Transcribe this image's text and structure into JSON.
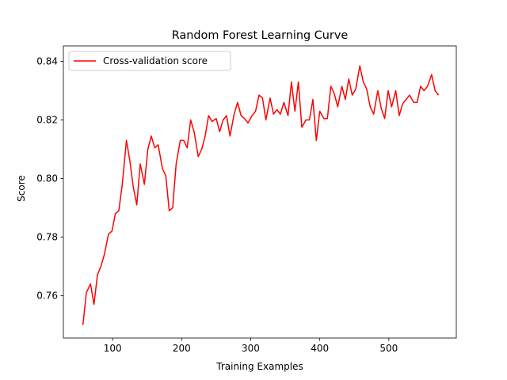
{
  "chart_data": {
    "type": "line",
    "title": "Random Forest Learning Curve",
    "x_label": "Training Examples",
    "y_label": "Score",
    "x": [
      57,
      62,
      68,
      73,
      78,
      83,
      88,
      94,
      99,
      104,
      109,
      114,
      120,
      125,
      130,
      135,
      140,
      146,
      151,
      156,
      161,
      166,
      172,
      177,
      182,
      187,
      192,
      198,
      203,
      208,
      213,
      218,
      224,
      229,
      234,
      239,
      244,
      250,
      255,
      260,
      265,
      270,
      276,
      281,
      286,
      291,
      296,
      302,
      307,
      312,
      317,
      322,
      328,
      333,
      338,
      343,
      348,
      354,
      359,
      364,
      369,
      374,
      380,
      385,
      390,
      395,
      400,
      406,
      411,
      416,
      421,
      426,
      432,
      437,
      442,
      447,
      452,
      458,
      463,
      468,
      473,
      478,
      484,
      489,
      494,
      499,
      504,
      510,
      515,
      520,
      525,
      530,
      536,
      541,
      546,
      551,
      556,
      562,
      567,
      572
    ],
    "series": [
      {
        "name": "Cross-validation score",
        "color": "#ff0000",
        "values": [
          0.75,
          0.761,
          0.764,
          0.757,
          0.767,
          0.77,
          0.774,
          0.781,
          0.782,
          0.788,
          0.789,
          0.798,
          0.813,
          0.806,
          0.797,
          0.791,
          0.805,
          0.798,
          0.81,
          0.8145,
          0.8105,
          0.8115,
          0.8035,
          0.801,
          0.789,
          0.79,
          0.805,
          0.813,
          0.813,
          0.8105,
          0.82,
          0.816,
          0.8075,
          0.81,
          0.8145,
          0.8215,
          0.8195,
          0.8205,
          0.816,
          0.82,
          0.8215,
          0.8145,
          0.822,
          0.826,
          0.8215,
          0.8205,
          0.819,
          0.8215,
          0.823,
          0.8285,
          0.8275,
          0.82,
          0.8275,
          0.822,
          0.8235,
          0.822,
          0.826,
          0.8215,
          0.833,
          0.823,
          0.833,
          0.8175,
          0.82,
          0.82,
          0.827,
          0.813,
          0.823,
          0.8205,
          0.8205,
          0.8315,
          0.829,
          0.8245,
          0.8315,
          0.827,
          0.834,
          0.8285,
          0.8305,
          0.8385,
          0.833,
          0.8305,
          0.8245,
          0.822,
          0.83,
          0.824,
          0.8205,
          0.83,
          0.8245,
          0.83,
          0.8215,
          0.8255,
          0.827,
          0.8285,
          0.826,
          0.826,
          0.8315,
          0.83,
          0.8315,
          0.8355,
          0.83,
          0.8285
        ]
      }
    ],
    "xlim": [
      28.7,
      597.7
    ],
    "ylim": [
      0.7455,
      0.8453
    ],
    "xticks": [
      100,
      200,
      300,
      400,
      500
    ],
    "yticks": [
      {
        "value": 0.76,
        "label": "0.76"
      },
      {
        "value": 0.78,
        "label": "0.78"
      },
      {
        "value": 0.8,
        "label": "0.80"
      },
      {
        "value": 0.82,
        "label": "0.82"
      },
      {
        "value": 0.84,
        "label": "0.84"
      }
    ],
    "legend": "upper left",
    "grid": false
  }
}
